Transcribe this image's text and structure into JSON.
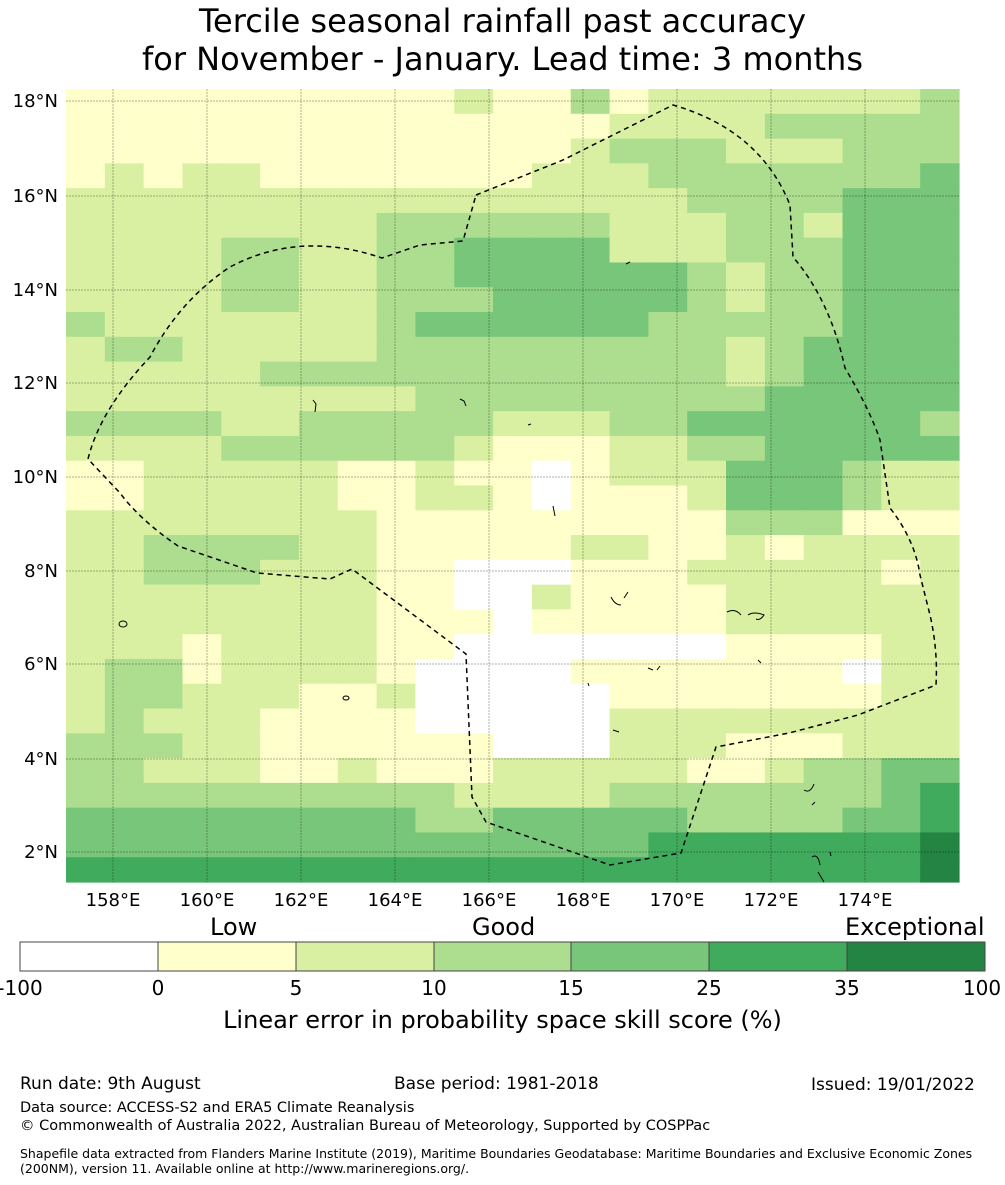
{
  "title": {
    "line1": "Tercile seasonal rainfall past accuracy",
    "line2": "for November - January. Lead time: 3 months"
  },
  "map": {
    "lat_ticks": [
      "18°N",
      "16°N",
      "14°N",
      "12°N",
      "10°N",
      "8°N",
      "6°N",
      "4°N",
      "2°N"
    ],
    "lon_ticks": [
      "158°E",
      "160°E",
      "162°E",
      "164°E",
      "166°E",
      "168°E",
      "170°E",
      "172°E",
      "174°E"
    ],
    "boundary": "eez-dashed-outline",
    "colors": {
      "no_skill": "#ffffff",
      "0_5": "#ffffcc",
      "5_10": "#d9f0a3",
      "10_15": "#addd8e",
      "15_25": "#78c679",
      "25_35": "#41ab5d",
      "35_100": "#238443"
    }
  },
  "colorbar": {
    "categories": [
      "Low",
      "Good",
      "Exceptional"
    ],
    "ticks": [
      "-100",
      "0",
      "5",
      "10",
      "15",
      "25",
      "35",
      "100"
    ],
    "colors": [
      "#ffffff",
      "#ffffcc",
      "#d9f0a3",
      "#addd8e",
      "#78c679",
      "#41ab5d",
      "#238443"
    ],
    "caption": "Linear error in probability space skill score (%)"
  },
  "footer": {
    "run_date": "Run date: 9th August",
    "base_period": "Base period: 1981-2018",
    "issued": "Issued: 19/01/2022",
    "data_source": "Data source: ACCESS-S2 and ERA5 Climate Reanalysis",
    "copyright": "© Commonwealth of Australia 2022, Australian Bureau of Meteorology, Supported by COSPPac",
    "shapefile": "Shapefile data extracted from Flanders Marine Institute (2019), Maritime Boundaries Geodatabase: Maritime Boundaries and Exclusive Economic Zones (200NM), version 11. Available online at http://www.marineregions.org/."
  }
}
